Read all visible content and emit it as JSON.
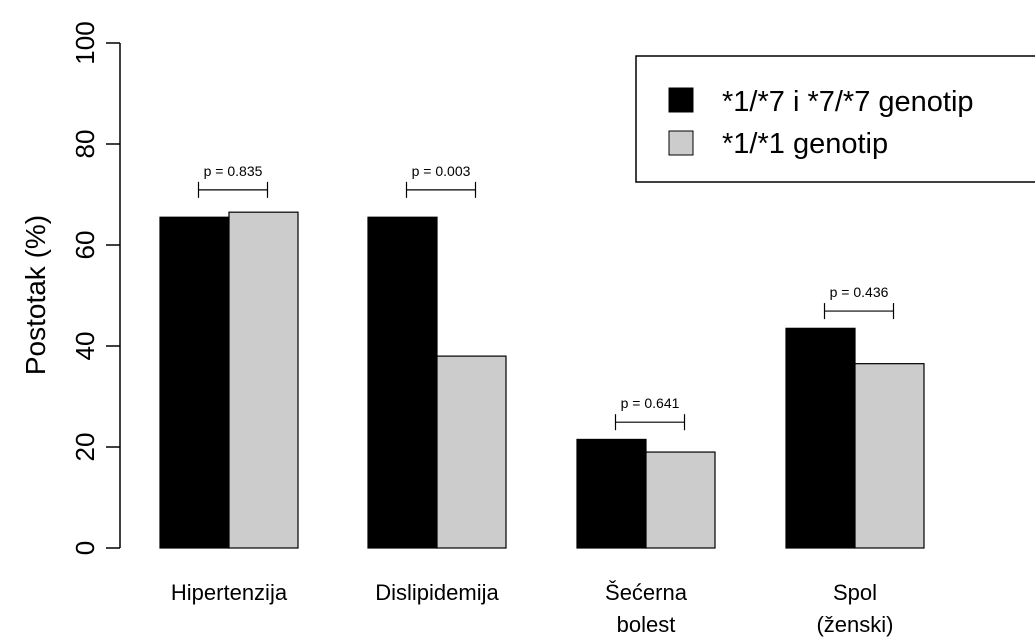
{
  "chart_data": {
    "type": "bar",
    "ylabel": "Postotak (%)",
    "xlabel": "",
    "ylim": [
      0,
      100
    ],
    "yticks": [
      0,
      20,
      40,
      60,
      80,
      100
    ],
    "grid": false,
    "legend_position": "top-right",
    "categories": [
      [
        "Hipertenzija"
      ],
      [
        "Dislipidemija"
      ],
      [
        "Šećerna",
        "bolest"
      ],
      [
        "Spol",
        "(ženski)"
      ]
    ],
    "series": [
      {
        "name": "*1/*7 i *7/*7 genotip",
        "color": "#000000",
        "values": [
          65.5,
          65.5,
          21.5,
          43.5
        ]
      },
      {
        "name": "*1/*1 genotip",
        "color": "#cccccc",
        "values": [
          66.5,
          38.0,
          19.0,
          36.5
        ]
      }
    ],
    "annotations": [
      "p = 0.835",
      "p = 0.003",
      "p = 0.641",
      "p = 0.436"
    ],
    "annotation_levels": [
      72.5,
      72.5,
      26.5,
      48.5
    ]
  }
}
